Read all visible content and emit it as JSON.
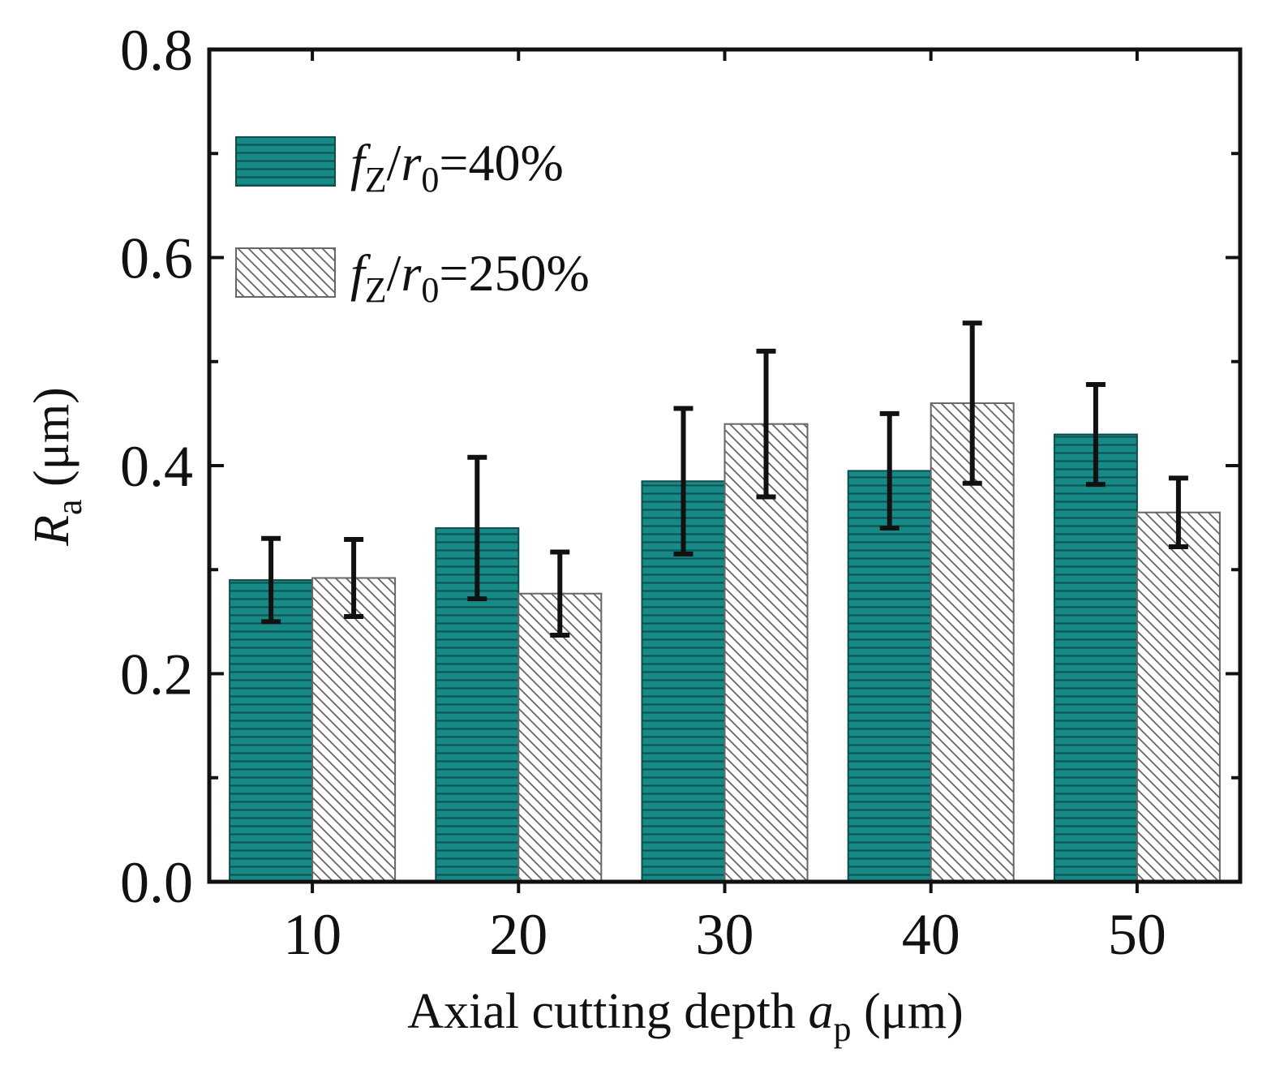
{
  "chart_data": {
    "type": "bar",
    "title": "",
    "xlabel": "Axial cutting depth",
    "xlabel_symbol": "a",
    "xlabel_subscript": "p",
    "xlabel_unit": "(μm)",
    "ylabel_symbol": "R",
    "ylabel_subscript": "a",
    "ylabel_unit": "(μm)",
    "categories": [
      "10",
      "20",
      "30",
      "40",
      "50"
    ],
    "ylim": [
      0,
      0.8
    ],
    "yticks": [
      "0.0",
      "0.2",
      "0.4",
      "0.6",
      "0.8"
    ],
    "grid": false,
    "legend_position": "top-left",
    "series": [
      {
        "name": "fZ/r0=40%",
        "legend_parts": {
          "f": "f",
          "fsub": "Z",
          "slash": "/",
          "r": "r",
          "rsub": "0",
          "rest": "=40%"
        },
        "values": [
          0.29,
          0.34,
          0.385,
          0.395,
          0.43
        ],
        "errors": [
          0.04,
          0.068,
          0.07,
          0.055,
          0.048
        ],
        "pattern": "horizontal-lines",
        "color": "#168a86"
      },
      {
        "name": "fZ/r0=250%",
        "legend_parts": {
          "f": "f",
          "fsub": "Z",
          "slash": "/",
          "r": "r",
          "rsub": "0",
          "rest": "=250%"
        },
        "values": [
          0.292,
          0.277,
          0.44,
          0.46,
          0.355
        ],
        "errors": [
          0.037,
          0.04,
          0.07,
          0.077,
          0.033
        ],
        "pattern": "diagonal-hatch",
        "color": "#ffffff"
      }
    ]
  }
}
